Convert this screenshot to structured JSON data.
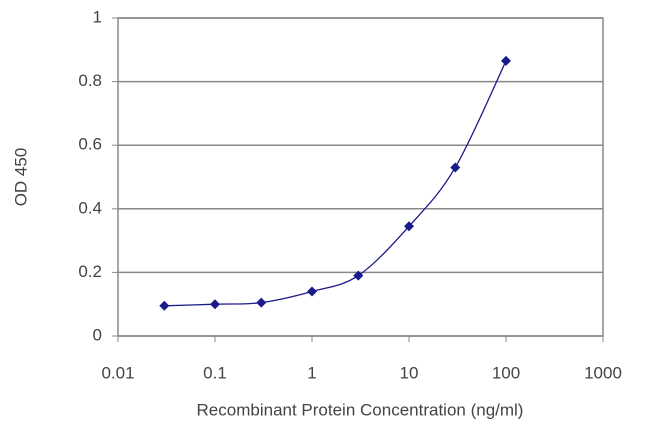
{
  "chart_data": {
    "type": "line",
    "xlabel": "Recombinant Protein Concentration (ng/ml)",
    "ylabel": "OD 450",
    "x": [
      0.03,
      0.1,
      0.3,
      1,
      3,
      10,
      30,
      100
    ],
    "series": [
      {
        "color": "#1a1a8c",
        "values": [
          0.095,
          0.1,
          0.105,
          0.14,
          0.19,
          0.345,
          0.53,
          0.865
        ]
      }
    ],
    "xscale": "log",
    "xlim": [
      0.01,
      1000
    ],
    "xticks": [
      0.01,
      0.1,
      1,
      10,
      100,
      1000
    ],
    "ylim": [
      0,
      1
    ],
    "yticks": [
      0,
      0.2,
      0.4,
      0.6,
      0.8,
      1
    ],
    "grid": true
  }
}
